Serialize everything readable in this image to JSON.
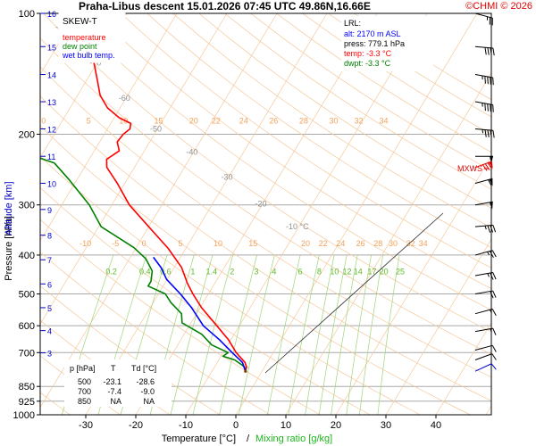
{
  "header": {
    "title": "Praha-Libus   descent   15.01.2026 07:45 UTC  49.86N,16.66E",
    "copyright": "©CHMI © 2026"
  },
  "legend": {
    "title": "SKEW-T",
    "items": [
      {
        "label": "temperature",
        "color": "#ff0000"
      },
      {
        "label": "dew point",
        "color": "#008000"
      },
      {
        "label": "wet bulb temp.",
        "color": "#0000ff"
      }
    ]
  },
  "lrl_box": {
    "title": "LRL:",
    "lines": [
      {
        "text": "alt: 2170 m ASL",
        "color": "#0000ff"
      },
      {
        "text": "press: 779.1 hPa",
        "color": "#000000"
      },
      {
        "text": "temp: -3.3 °C",
        "color": "#ff0000"
      },
      {
        "text": "dwpt: -3.3 °C",
        "color": "#008000"
      }
    ]
  },
  "table": {
    "headers": [
      "p [hPa]",
      "T",
      "Td [°C]"
    ],
    "rows": [
      [
        "500",
        "-23.1",
        "-28.6"
      ],
      [
        "700",
        "-7.4",
        "-9.0"
      ],
      [
        "850",
        "NA",
        "NA"
      ]
    ]
  },
  "mxws_label": "MXWS",
  "chart_data": {
    "type": "line",
    "title": "Praha-Libus   descent   15.01.2026 07:45 UTC  49.86N,16.66E",
    "xlabel": "Temperature [°C]",
    "xlabel2": "Mixing ratio [g/kg]",
    "ylabel": "Pressure [hPa]",
    "ylabel2": "Altitude [km]",
    "xlim": [
      -37,
      50
    ],
    "ylim": [
      1000,
      100
    ],
    "x_ticks": [
      -30,
      -20,
      -10,
      0,
      10,
      20,
      30,
      40
    ],
    "x_tick_labels": [
      "-30",
      "-20",
      "-10",
      "0",
      "10",
      "20",
      "30",
      "40"
    ],
    "pressure_ticks": [
      100,
      200,
      300,
      400,
      500,
      600,
      700,
      850,
      925,
      1000
    ],
    "pressure_tick_labels": [
      "100",
      "200",
      "300",
      "400",
      "500",
      "600",
      "700",
      "850",
      "925",
      "1000"
    ],
    "altitude_ticks": [
      {
        "km": "16",
        "p": 100
      },
      {
        "km": "15",
        "p": 121
      },
      {
        "km": "14",
        "p": 142
      },
      {
        "km": "13",
        "p": 166
      },
      {
        "km": "12",
        "p": 194
      },
      {
        "km": "11",
        "p": 227
      },
      {
        "km": "10",
        "p": 265
      },
      {
        "km": "9",
        "p": 308
      },
      {
        "km": "8",
        "p": 357
      },
      {
        "km": "7",
        "p": 411
      },
      {
        "km": "6",
        "p": 472
      },
      {
        "km": "5",
        "p": 541
      },
      {
        "km": "4",
        "p": 617
      },
      {
        "km": "3",
        "p": 701
      }
    ],
    "dry_adiabat_labels": [
      {
        "text": "-80 °C",
        "x": -80,
        "p": 110
      },
      {
        "text": "-70",
        "x": -70,
        "p": 135
      },
      {
        "text": "-60",
        "x": -60,
        "p": 165
      },
      {
        "text": "-50",
        "x": -50,
        "p": 197
      },
      {
        "text": "-40",
        "x": -40,
        "p": 225
      },
      {
        "text": "-30",
        "x": -30,
        "p": 260
      },
      {
        "text": "-20",
        "x": -20,
        "p": 303
      },
      {
        "text": "-10 °C",
        "x": -10,
        "p": 345
      }
    ],
    "isotherm_labels_top": [
      {
        "text": "0",
        "x": -73,
        "p": 192
      },
      {
        "text": "5",
        "x": -64,
        "p": 192
      },
      {
        "text": "10",
        "x": -57,
        "p": 192
      },
      {
        "text": "15",
        "x": -50,
        "p": 192
      },
      {
        "text": "20",
        "x": -43,
        "p": 192
      },
      {
        "text": "22",
        "x": -38.5,
        "p": 192
      },
      {
        "text": "24",
        "x": -33,
        "p": 192
      },
      {
        "text": "26",
        "x": -27,
        "p": 192
      },
      {
        "text": "28",
        "x": -21,
        "p": 192
      },
      {
        "text": "30",
        "x": -15,
        "p": 192
      },
      {
        "text": "32",
        "x": -10,
        "p": 192
      },
      {
        "text": "34",
        "x": -5,
        "p": 192
      }
    ],
    "isotherm_labels_mid": [
      {
        "text": "-10",
        "x": -50,
        "p": 386
      },
      {
        "text": "-5",
        "x": -44,
        "p": 386
      },
      {
        "text": "0",
        "x": -38.3,
        "p": 386
      },
      {
        "text": "5",
        "x": -31,
        "p": 386
      },
      {
        "text": "10",
        "x": -23.5,
        "p": 386
      },
      {
        "text": "15",
        "x": -16.5,
        "p": 386
      },
      {
        "text": "20",
        "x": -6,
        "p": 386
      },
      {
        "text": "22",
        "x": -2.5,
        "p": 386
      },
      {
        "text": "24",
        "x": 1,
        "p": 386
      },
      {
        "text": "26",
        "x": 5,
        "p": 386
      },
      {
        "text": "28",
        "x": 8.5,
        "p": 386
      },
      {
        "text": "30",
        "x": 11.5,
        "p": 386
      },
      {
        "text": "32",
        "x": 15,
        "p": 386
      },
      {
        "text": "34",
        "x": 17.5,
        "p": 386
      }
    ],
    "mixing_ratio_values": [
      "0.2",
      "0.4",
      "0.6",
      "1",
      "1.4",
      "2",
      "3",
      "4",
      "6",
      "8",
      "10",
      "12",
      "14",
      "17",
      "20",
      "25"
    ],
    "series": [
      {
        "name": "temperature",
        "color": "#ff0000",
        "points": [
          {
            "p": 100,
            "t": -77
          },
          {
            "p": 106,
            "t": -75
          },
          {
            "p": 118,
            "t": -73
          },
          {
            "p": 132,
            "t": -70.8
          },
          {
            "p": 146,
            "t": -68
          },
          {
            "p": 160,
            "t": -65.5
          },
          {
            "p": 172,
            "t": -62.5
          },
          {
            "p": 182,
            "t": -59
          },
          {
            "p": 188,
            "t": -56
          },
          {
            "p": 194,
            "t": -55.5
          },
          {
            "p": 200,
            "t": -56.2
          },
          {
            "p": 209,
            "t": -56.5
          },
          {
            "p": 220,
            "t": -55
          },
          {
            "p": 231,
            "t": -56.5
          },
          {
            "p": 242,
            "t": -55.5
          },
          {
            "p": 265,
            "t": -51.5
          },
          {
            "p": 300,
            "t": -46.5
          },
          {
            "p": 340,
            "t": -40
          },
          {
            "p": 385,
            "t": -33.5
          },
          {
            "p": 430,
            "t": -28.5
          },
          {
            "p": 470,
            "t": -25.5
          },
          {
            "p": 500,
            "t": -23.1
          },
          {
            "p": 540,
            "t": -19.8
          },
          {
            "p": 600,
            "t": -14.5
          },
          {
            "p": 650,
            "t": -10.5
          },
          {
            "p": 700,
            "t": -7.4
          },
          {
            "p": 740,
            "t": -4.5
          },
          {
            "p": 760,
            "t": -3.6
          },
          {
            "p": 779.1,
            "t": -3.3
          }
        ]
      },
      {
        "name": "dew point",
        "color": "#008000",
        "points": [
          {
            "p": 100,
            "t": -88
          },
          {
            "p": 115,
            "t": -88
          },
          {
            "p": 127,
            "t": -87
          },
          {
            "p": 141,
            "t": -84.5
          },
          {
            "p": 155,
            "t": -84
          },
          {
            "p": 170,
            "t": -80
          },
          {
            "p": 182,
            "t": -79.5
          },
          {
            "p": 194,
            "t": -79
          },
          {
            "p": 200,
            "t": -78.5
          },
          {
            "p": 212,
            "t": -76.2
          },
          {
            "p": 222,
            "t": -74
          },
          {
            "p": 236,
            "t": -66.5
          },
          {
            "p": 260,
            "t": -61.5
          },
          {
            "p": 300,
            "t": -54.5
          },
          {
            "p": 340,
            "t": -49.5
          },
          {
            "p": 383,
            "t": -40.5
          },
          {
            "p": 408,
            "t": -36.8
          },
          {
            "p": 438,
            "t": -34
          },
          {
            "p": 465,
            "t": -33
          },
          {
            "p": 478,
            "t": -33
          },
          {
            "p": 500,
            "t": -28.6
          },
          {
            "p": 525,
            "t": -26.5
          },
          {
            "p": 560,
            "t": -23
          },
          {
            "p": 590,
            "t": -21.8
          },
          {
            "p": 630,
            "t": -16.5
          },
          {
            "p": 670,
            "t": -13.2
          },
          {
            "p": 700,
            "t": -9.0
          },
          {
            "p": 715,
            "t": -9.6
          },
          {
            "p": 730,
            "t": -6.8
          },
          {
            "p": 760,
            "t": -4
          },
          {
            "p": 779.1,
            "t": -3.3
          }
        ]
      },
      {
        "name": "wet bulb temp.",
        "color": "#0000ff",
        "points": [
          {
            "p": 405,
            "t": -35.4
          },
          {
            "p": 430,
            "t": -32.6
          },
          {
            "p": 460,
            "t": -30.1
          },
          {
            "p": 500,
            "t": -25.6
          },
          {
            "p": 540,
            "t": -21.8
          },
          {
            "p": 600,
            "t": -17.2
          },
          {
            "p": 650,
            "t": -12.3
          },
          {
            "p": 700,
            "t": -8.2
          },
          {
            "p": 740,
            "t": -5.0
          },
          {
            "p": 779.1,
            "t": -3.3
          }
        ]
      }
    ],
    "wind_barbs": [
      {
        "p": 100,
        "dir": 285,
        "kt": 25
      },
      {
        "p": 121,
        "dir": 275,
        "kt": 40
      },
      {
        "p": 142,
        "dir": 280,
        "kt": 45
      },
      {
        "p": 166,
        "dir": 280,
        "kt": 45
      },
      {
        "p": 194,
        "dir": 275,
        "kt": 45
      },
      {
        "p": 227,
        "dir": 270,
        "kt": 50
      },
      {
        "p": 242,
        "dir": 250,
        "kt": 80
      },
      {
        "p": 265,
        "dir": 255,
        "kt": 60
      },
      {
        "p": 300,
        "dir": 260,
        "kt": 50
      },
      {
        "p": 340,
        "dir": 265,
        "kt": 35
      },
      {
        "p": 400,
        "dir": 255,
        "kt": 25
      },
      {
        "p": 450,
        "dir": 260,
        "kt": 25
      },
      {
        "p": 500,
        "dir": 260,
        "kt": 20
      },
      {
        "p": 560,
        "dir": 255,
        "kt": 15
      },
      {
        "p": 620,
        "dir": 260,
        "kt": 15
      },
      {
        "p": 690,
        "dir": 255,
        "kt": 10
      },
      {
        "p": 730,
        "dir": 250,
        "kt": 10
      },
      {
        "p": 779,
        "dir": 245,
        "kt": 10
      }
    ],
    "mxws_pressure": 242
  }
}
